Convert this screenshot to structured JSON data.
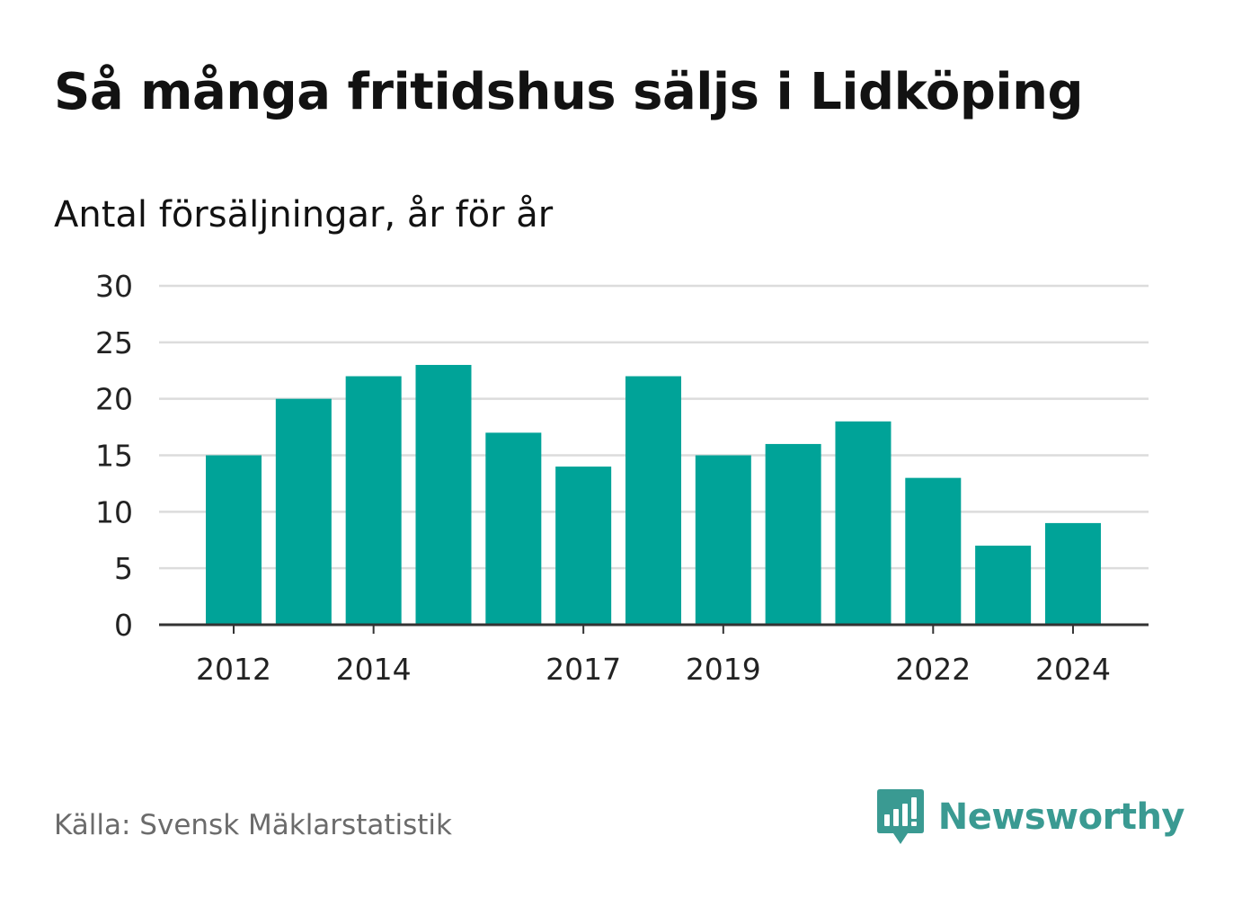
{
  "title": "Så många fritidshus säljs i Lidköping",
  "subtitle": "Antal försäljningar, år för år",
  "source": "Källa: Svensk Mäklarstatistik",
  "brand": {
    "name": "Newsworthy",
    "icon": "newsworthy-logo-icon"
  },
  "colors": {
    "bar": "#00a398",
    "grid": "#dcdcdc",
    "axis": "#333333",
    "brand": "#3a9a92"
  },
  "chart_data": {
    "type": "bar",
    "categories": [
      2012,
      2013,
      2014,
      2015,
      2016,
      2017,
      2018,
      2019,
      2020,
      2021,
      2022,
      2023,
      2024
    ],
    "values": [
      15,
      20,
      22,
      23,
      17,
      14,
      22,
      15,
      16,
      18,
      13,
      7,
      9
    ],
    "x_tick_labels": [
      "2012",
      "2014",
      "2017",
      "2019",
      "2022",
      "2024"
    ],
    "y_ticks": [
      0,
      5,
      10,
      15,
      20,
      25,
      30
    ],
    "ylim": [
      0,
      30
    ],
    "grid": true,
    "legend": "none"
  }
}
